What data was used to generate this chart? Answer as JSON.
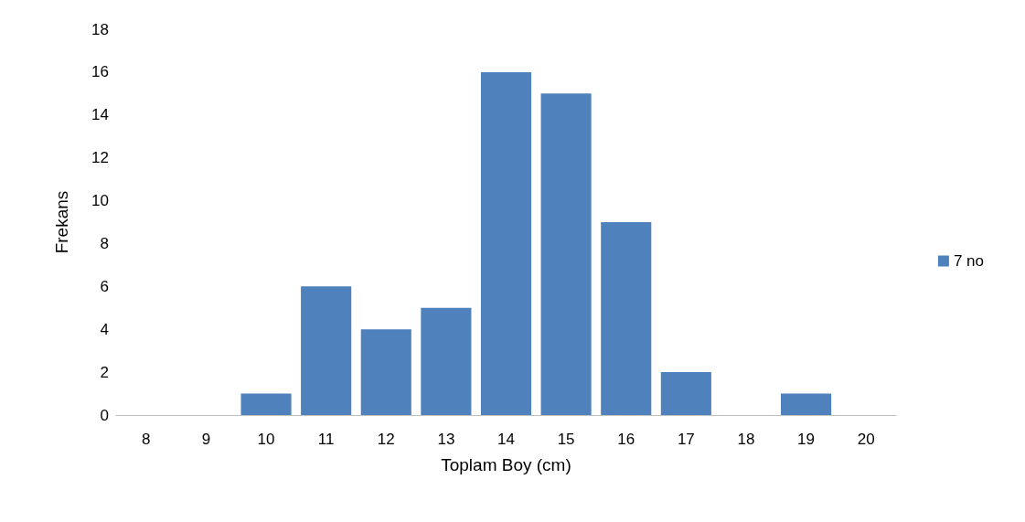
{
  "chart_data": {
    "type": "bar",
    "xlabel": "Toplam Boy (cm)",
    "ylabel": "Frekans",
    "categories": [
      "8",
      "9",
      "10",
      "11",
      "12",
      "13",
      "14",
      "15",
      "16",
      "17",
      "18",
      "19",
      "20"
    ],
    "series": [
      {
        "name": "7 no",
        "color": "#4f81bd",
        "values": [
          0,
          0,
          1,
          6,
          4,
          5,
          16,
          15,
          9,
          2,
          0,
          1,
          0
        ]
      }
    ],
    "ylim": [
      0,
      18
    ],
    "yticks": [
      0,
      2,
      4,
      6,
      8,
      10,
      12,
      14,
      16,
      18
    ],
    "grid": false,
    "legend": "right"
  }
}
